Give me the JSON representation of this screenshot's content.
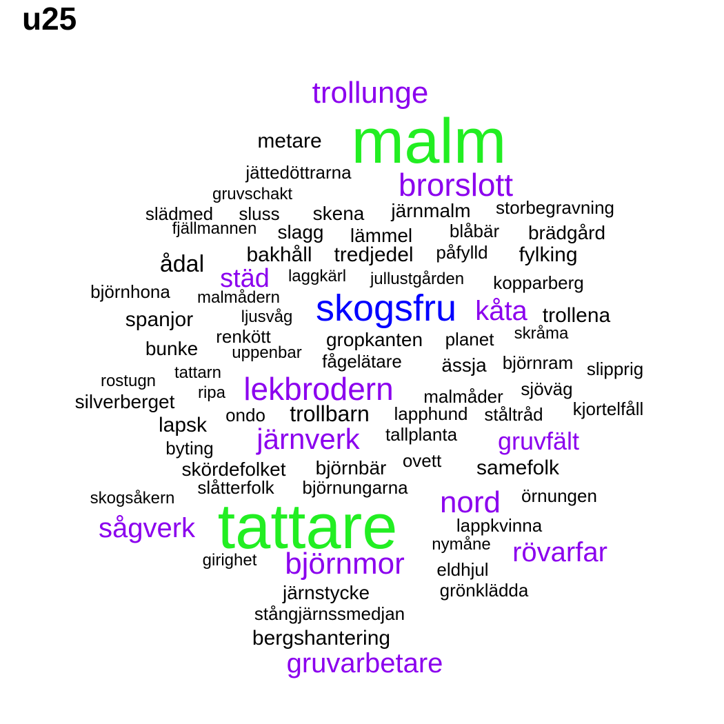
{
  "title": "u25",
  "colors": {
    "top": "#22ee22",
    "high": "#0000ff",
    "mid": "#8b00ee",
    "low": "#000000"
  },
  "words": [
    {
      "text": "malm",
      "tier": "top"
    },
    {
      "text": "tattare",
      "tier": "top"
    },
    {
      "text": "skogsfru",
      "tier": "high"
    },
    {
      "text": "trollunge",
      "tier": "mid"
    },
    {
      "text": "brorslott",
      "tier": "mid"
    },
    {
      "text": "städ",
      "tier": "mid"
    },
    {
      "text": "kåta",
      "tier": "mid"
    },
    {
      "text": "lekbrodern",
      "tier": "mid"
    },
    {
      "text": "järnverk",
      "tier": "mid"
    },
    {
      "text": "gruvfält",
      "tier": "mid"
    },
    {
      "text": "nord",
      "tier": "mid"
    },
    {
      "text": "sågverk",
      "tier": "mid"
    },
    {
      "text": "björnmor",
      "tier": "mid"
    },
    {
      "text": "rövarfar",
      "tier": "mid"
    },
    {
      "text": "gruvarbetare",
      "tier": "mid"
    },
    {
      "text": "metare",
      "tier": "low"
    },
    {
      "text": "jättedöttrarna",
      "tier": "low"
    },
    {
      "text": "gruvschakt",
      "tier": "low"
    },
    {
      "text": "slädmed",
      "tier": "low"
    },
    {
      "text": "sluss",
      "tier": "low"
    },
    {
      "text": "skena",
      "tier": "low"
    },
    {
      "text": "järnmalm",
      "tier": "low"
    },
    {
      "text": "storbegravning",
      "tier": "low"
    },
    {
      "text": "fjällmannen",
      "tier": "low"
    },
    {
      "text": "slagg",
      "tier": "low"
    },
    {
      "text": "lämmel",
      "tier": "low"
    },
    {
      "text": "blåbär",
      "tier": "low"
    },
    {
      "text": "brädgård",
      "tier": "low"
    },
    {
      "text": "ådal",
      "tier": "low"
    },
    {
      "text": "bakhåll",
      "tier": "low"
    },
    {
      "text": "tredjedel",
      "tier": "low"
    },
    {
      "text": "påfylld",
      "tier": "low"
    },
    {
      "text": "fylking",
      "tier": "low"
    },
    {
      "text": "laggkärl",
      "tier": "low"
    },
    {
      "text": "jullustgården",
      "tier": "low"
    },
    {
      "text": "kopparberg",
      "tier": "low"
    },
    {
      "text": "björnhona",
      "tier": "low"
    },
    {
      "text": "malmådern",
      "tier": "low"
    },
    {
      "text": "spanjor",
      "tier": "low"
    },
    {
      "text": "ljusvåg",
      "tier": "low"
    },
    {
      "text": "trollena",
      "tier": "low"
    },
    {
      "text": "renkött",
      "tier": "low"
    },
    {
      "text": "gropkanten",
      "tier": "low"
    },
    {
      "text": "planet",
      "tier": "low"
    },
    {
      "text": "skråma",
      "tier": "low"
    },
    {
      "text": "bunke",
      "tier": "low"
    },
    {
      "text": "uppenbar",
      "tier": "low"
    },
    {
      "text": "fågelätare",
      "tier": "low"
    },
    {
      "text": "ässja",
      "tier": "low"
    },
    {
      "text": "björnram",
      "tier": "low"
    },
    {
      "text": "slipprig",
      "tier": "low"
    },
    {
      "text": "rostugn",
      "tier": "low"
    },
    {
      "text": "tattarn",
      "tier": "low"
    },
    {
      "text": "sjöväg",
      "tier": "low"
    },
    {
      "text": "ripa",
      "tier": "low"
    },
    {
      "text": "malmåder",
      "tier": "low"
    },
    {
      "text": "silverberget",
      "tier": "low"
    },
    {
      "text": "kjortelfåll",
      "tier": "low"
    },
    {
      "text": "ondo",
      "tier": "low"
    },
    {
      "text": "trollbarn",
      "tier": "low"
    },
    {
      "text": "lapphund",
      "tier": "low"
    },
    {
      "text": "ståltråd",
      "tier": "low"
    },
    {
      "text": "lapsk",
      "tier": "low"
    },
    {
      "text": "tallplanta",
      "tier": "low"
    },
    {
      "text": "byting",
      "tier": "low"
    },
    {
      "text": "ovett",
      "tier": "low"
    },
    {
      "text": "skördefolket",
      "tier": "low"
    },
    {
      "text": "björnbär",
      "tier": "low"
    },
    {
      "text": "samefolk",
      "tier": "low"
    },
    {
      "text": "slåtterfolk",
      "tier": "low"
    },
    {
      "text": "björnungarna",
      "tier": "low"
    },
    {
      "text": "skogsåkern",
      "tier": "low"
    },
    {
      "text": "örnungen",
      "tier": "low"
    },
    {
      "text": "lappkvinna",
      "tier": "low"
    },
    {
      "text": "nymåne",
      "tier": "low"
    },
    {
      "text": "girighet",
      "tier": "low"
    },
    {
      "text": "eldhjul",
      "tier": "low"
    },
    {
      "text": "grönklädda",
      "tier": "low"
    },
    {
      "text": "järnstycke",
      "tier": "low"
    },
    {
      "text": "stångjärnssmedjan",
      "tier": "low"
    },
    {
      "text": "bergshantering",
      "tier": "low"
    }
  ]
}
